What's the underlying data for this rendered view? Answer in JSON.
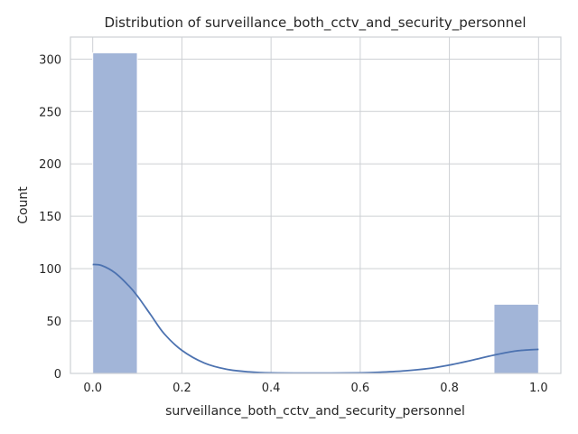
{
  "chart_data": {
    "type": "bar",
    "title": "Distribution of surveillance_both_cctv_and_security_personnel",
    "xlabel": "surveillance_both_cctv_and_security_personnel",
    "ylabel": "Count",
    "xlim": [
      -0.05,
      1.05
    ],
    "ylim": [
      0,
      321
    ],
    "x_ticks": [
      0.0,
      0.2,
      0.4,
      0.6,
      0.8,
      1.0
    ],
    "x_tick_labels": [
      "0.0",
      "0.2",
      "0.4",
      "0.6",
      "0.8",
      "1.0"
    ],
    "y_ticks": [
      0,
      50,
      100,
      150,
      200,
      250,
      300
    ],
    "y_tick_labels": [
      "0",
      "50",
      "100",
      "150",
      "200",
      "250",
      "300"
    ],
    "grid": true,
    "bins": [
      {
        "start": 0.0,
        "end": 0.1,
        "value": 306
      },
      {
        "start": 0.1,
        "end": 0.2,
        "value": 0
      },
      {
        "start": 0.2,
        "end": 0.3,
        "value": 0
      },
      {
        "start": 0.3,
        "end": 0.4,
        "value": 0
      },
      {
        "start": 0.4,
        "end": 0.5,
        "value": 0
      },
      {
        "start": 0.5,
        "end": 0.6,
        "value": 0
      },
      {
        "start": 0.6,
        "end": 0.7,
        "value": 0
      },
      {
        "start": 0.7,
        "end": 0.8,
        "value": 0
      },
      {
        "start": 0.8,
        "end": 0.9,
        "value": 0
      },
      {
        "start": 0.9,
        "end": 1.0,
        "value": 66
      }
    ],
    "kde": {
      "x": [
        0.0,
        0.02,
        0.05,
        0.08,
        0.1,
        0.13,
        0.16,
        0.2,
        0.25,
        0.3,
        0.35,
        0.4,
        0.5,
        0.6,
        0.65,
        0.7,
        0.75,
        0.8,
        0.85,
        0.9,
        0.95,
        1.0
      ],
      "y": [
        104,
        103,
        96,
        84,
        74,
        56,
        38,
        22,
        10,
        4,
        1.5,
        0.5,
        0.3,
        0.5,
        1.3,
        2.5,
        4.5,
        8,
        12.5,
        17.5,
        21.5,
        23
      ]
    },
    "colors": {
      "bar": "#a2b5d8",
      "kde": "#4c72b0"
    }
  }
}
